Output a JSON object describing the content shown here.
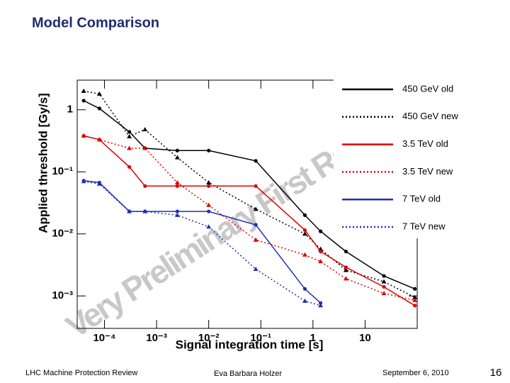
{
  "slide": {
    "title": "Model Comparison",
    "footer_left": "LHC Machine Protection Review",
    "footer_center": "Eva Barbara Holzer",
    "footer_right": "September 6, 2010",
    "page_number": "16"
  },
  "chart_data": {
    "type": "line",
    "x_log": true,
    "y_log": true,
    "watermark": "Very Preliminary First Results",
    "xlabel": "Signal integration time [s]",
    "ylabel": "Applied threshold [Gy/s]",
    "xlim": [
      3e-05,
      100
    ],
    "ylim": [
      0.0003,
      3
    ],
    "xticks": [
      {
        "value": 0.0001,
        "label": "10⁻⁴"
      },
      {
        "value": 0.001,
        "label": "10⁻³"
      },
      {
        "value": 0.01,
        "label": "10⁻²"
      },
      {
        "value": 0.1,
        "label": "10⁻¹"
      },
      1,
      10
    ],
    "yticks": [
      {
        "value": 0.001,
        "label": "10⁻³"
      },
      {
        "value": 0.01,
        "label": "10⁻²"
      },
      {
        "value": 0.1,
        "label": "10⁻¹"
      },
      1
    ],
    "legend": "top-right",
    "x": [
      4e-05,
      8e-05,
      0.0003,
      0.0006,
      0.0025,
      0.01,
      0.08,
      0.7,
      1.4,
      4.3,
      23,
      90
    ],
    "series": [
      {
        "name": "450 GeV old",
        "color": "#000000",
        "dash": false,
        "marker": "circle",
        "values": [
          1.4,
          1.05,
          0.44,
          0.24,
          0.22,
          0.22,
          0.15,
          0.02,
          0.011,
          0.0052,
          0.0021,
          0.0013
        ]
      },
      {
        "name": "450 GeV new",
        "color": "#000000",
        "dash": true,
        "marker": "triangle",
        "values": [
          2.0,
          1.8,
          0.37,
          0.48,
          0.17,
          0.067,
          0.025,
          0.01,
          0.0057,
          0.0026,
          0.0017,
          0.00095
        ]
      },
      {
        "name": "3.5 TeV old",
        "color": "#e00000",
        "dash": false,
        "marker": "circle",
        "values": [
          0.38,
          0.33,
          0.12,
          0.059,
          0.059,
          0.059,
          0.059,
          0.0115,
          0.0052,
          0.0029,
          0.0014,
          0.0007
        ]
      },
      {
        "name": "3.5 TeV new",
        "color": "#e00000",
        "dash": true,
        "marker": "triangle",
        "values": [
          0.38,
          0.33,
          0.24,
          0.24,
          0.067,
          0.029,
          0.008,
          0.0046,
          0.0036,
          0.0019,
          0.0011,
          0.00085
        ]
      },
      {
        "name": "7 TeV old",
        "color": "#2030b0",
        "dash": false,
        "marker": "circle",
        "values": [
          0.072,
          0.067,
          0.023,
          0.023,
          0.023,
          0.023,
          0.014,
          0.0013,
          0.00077,
          null,
          null,
          null
        ]
      },
      {
        "name": "7 TeV new",
        "color": "#2030b0",
        "dash": true,
        "marker": "triangle",
        "values": [
          0.07,
          0.064,
          0.023,
          0.023,
          0.02,
          0.013,
          0.0027,
          0.00083,
          0.0007,
          null,
          null,
          null
        ]
      }
    ]
  }
}
